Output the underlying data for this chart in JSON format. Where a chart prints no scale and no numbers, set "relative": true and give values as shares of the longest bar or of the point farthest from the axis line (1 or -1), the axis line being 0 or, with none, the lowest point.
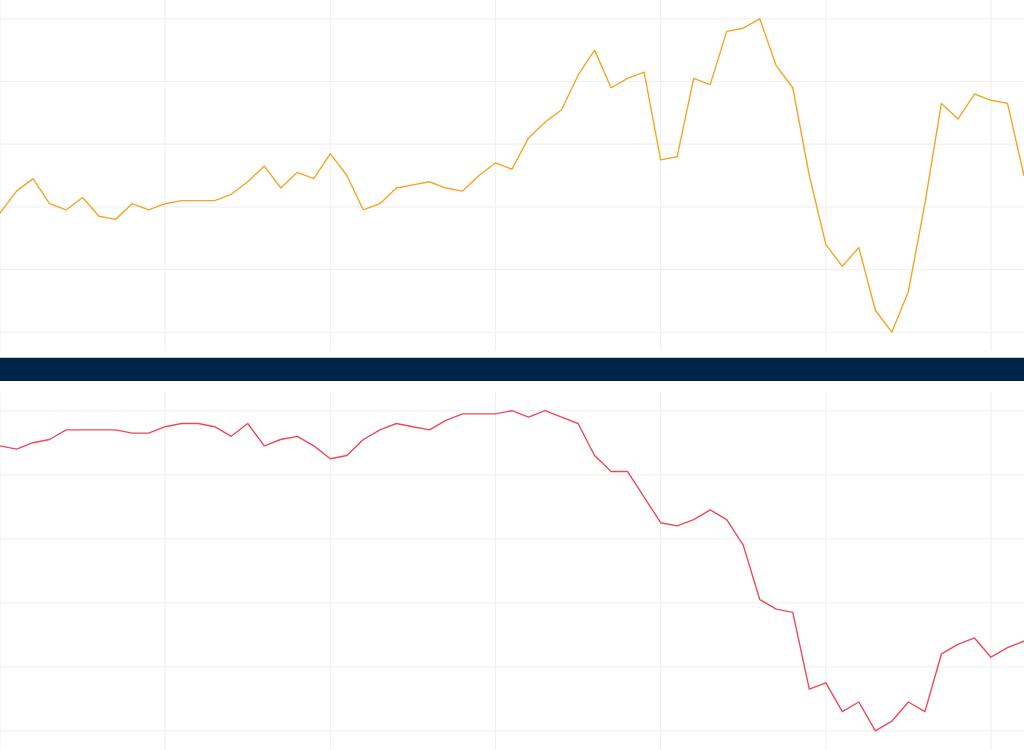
{
  "chart_data": [
    {
      "type": "line",
      "relative": true,
      "grid": true,
      "legend": false,
      "tick_labels": false,
      "marker": "none",
      "line_style": "solid",
      "categories": [
        null,
        null,
        null,
        null,
        null,
        null,
        null,
        null,
        null,
        null,
        null,
        null,
        null,
        null,
        null,
        null,
        null,
        null,
        null,
        null,
        null,
        null,
        null,
        null,
        null,
        null,
        null,
        null,
        null,
        null,
        null,
        null,
        null,
        null,
        null,
        null,
        null,
        null,
        null,
        null,
        null,
        null,
        null,
        null,
        null,
        null,
        null,
        null,
        null,
        null,
        null,
        null,
        null,
        null,
        null,
        null,
        null,
        null,
        null,
        null,
        null,
        null,
        null
      ],
      "series": [
        {
          "color": "#f5a524",
          "values": [
            0.38,
            0.45,
            0.49,
            0.41,
            0.39,
            0.43,
            0.37,
            0.36,
            0.41,
            0.39,
            0.41,
            0.42,
            0.42,
            0.42,
            0.44,
            0.48,
            0.53,
            0.46,
            0.51,
            0.49,
            0.57,
            0.5,
            0.39,
            0.41,
            0.46,
            0.47,
            0.48,
            0.46,
            0.45,
            0.5,
            0.54,
            0.52,
            0.62,
            0.67,
            0.71,
            0.82,
            0.9,
            0.78,
            0.81,
            0.83,
            0.55,
            0.56,
            0.81,
            0.79,
            0.96,
            0.97,
            1,
            0.85,
            0.78,
            0.5,
            0.28,
            0.21,
            0.27,
            0.07,
            0,
            0.13,
            0.41,
            0.73,
            0.68,
            0.76,
            0.74,
            0.73,
            0.5
          ]
        }
      ]
    },
    {
      "type": "line",
      "relative": true,
      "grid": true,
      "legend": false,
      "tick_labels": false,
      "marker": "none",
      "line_style": "solid",
      "categories": [
        null,
        null,
        null,
        null,
        null,
        null,
        null,
        null,
        null,
        null,
        null,
        null,
        null,
        null,
        null,
        null,
        null,
        null,
        null,
        null,
        null,
        null,
        null,
        null,
        null,
        null,
        null,
        null,
        null,
        null,
        null,
        null,
        null,
        null,
        null,
        null,
        null,
        null,
        null,
        null,
        null,
        null,
        null,
        null,
        null,
        null,
        null,
        null,
        null,
        null,
        null,
        null,
        null,
        null,
        null,
        null,
        null,
        null,
        null,
        null,
        null,
        null,
        null
      ],
      "series": [
        {
          "color": "#f0485a",
          "values": [
            0.89,
            0.88,
            0.9,
            0.91,
            0.94,
            0.94,
            0.94,
            0.94,
            0.93,
            0.93,
            0.95,
            0.96,
            0.96,
            0.95,
            0.92,
            0.96,
            0.89,
            0.91,
            0.92,
            0.89,
            0.85,
            0.86,
            0.91,
            0.94,
            0.96,
            0.95,
            0.94,
            0.97,
            0.99,
            0.99,
            0.99,
            1,
            0.98,
            1,
            0.98,
            0.96,
            0.86,
            0.81,
            0.81,
            0.73,
            0.65,
            0.64,
            0.66,
            0.69,
            0.66,
            0.58,
            0.41,
            0.38,
            0.37,
            0.13,
            0.15,
            0.06,
            0.09,
            0,
            0.03,
            0.09,
            0.06,
            0.24,
            0.27,
            0.29,
            0.23,
            0.26,
            0.28
          ]
        }
      ]
    }
  ]
}
